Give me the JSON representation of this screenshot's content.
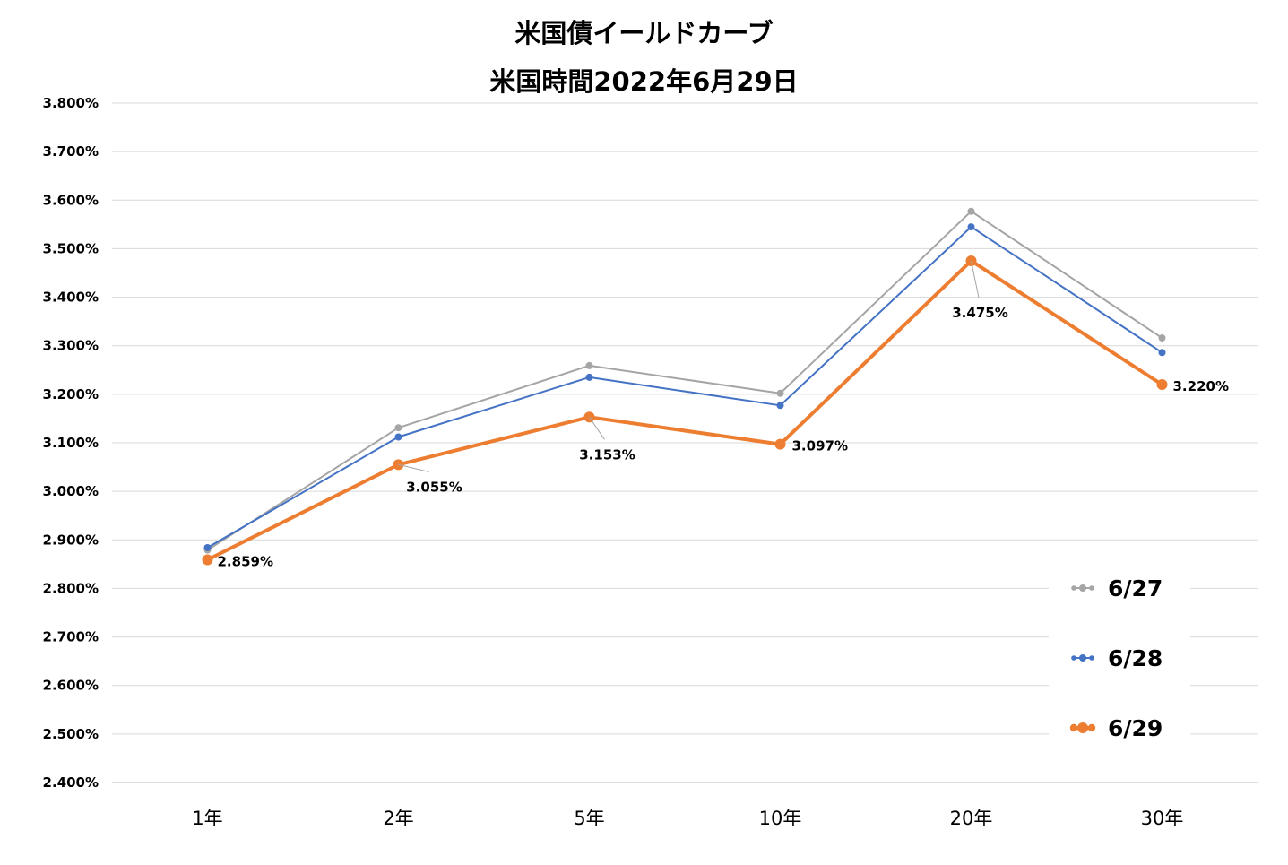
{
  "chart_data": {
    "type": "line",
    "title": "米国債イールドカーブ",
    "subtitle": "米国時間2022年6月29日",
    "categories": [
      "1年",
      "2年",
      "5年",
      "10年",
      "20年",
      "30年"
    ],
    "ylim": [
      2.4,
      3.8
    ],
    "yticks": [
      "3.800%",
      "3.700%",
      "3.600%",
      "3.500%",
      "3.400%",
      "3.300%",
      "3.200%",
      "3.100%",
      "3.000%",
      "2.900%",
      "2.800%",
      "2.700%",
      "2.600%",
      "2.500%",
      "2.400%"
    ],
    "grid": true,
    "legend_position": "bottom-right",
    "series": [
      {
        "name": "6/27",
        "color": "#a5a5a5",
        "values": [
          2.879,
          3.131,
          3.259,
          3.202,
          3.577,
          3.316
        ]
      },
      {
        "name": "6/28",
        "color": "#4472c4",
        "values": [
          2.884,
          3.112,
          3.235,
          3.177,
          3.545,
          3.286
        ]
      },
      {
        "name": "6/29",
        "color": "#ed7d31",
        "values": [
          2.859,
          3.055,
          3.153,
          3.097,
          3.475,
          3.22
        ],
        "data_labels": [
          "2.859%",
          "3.055%",
          "3.153%",
          "3.097%",
          "3.475%",
          "3.220%"
        ]
      }
    ]
  }
}
